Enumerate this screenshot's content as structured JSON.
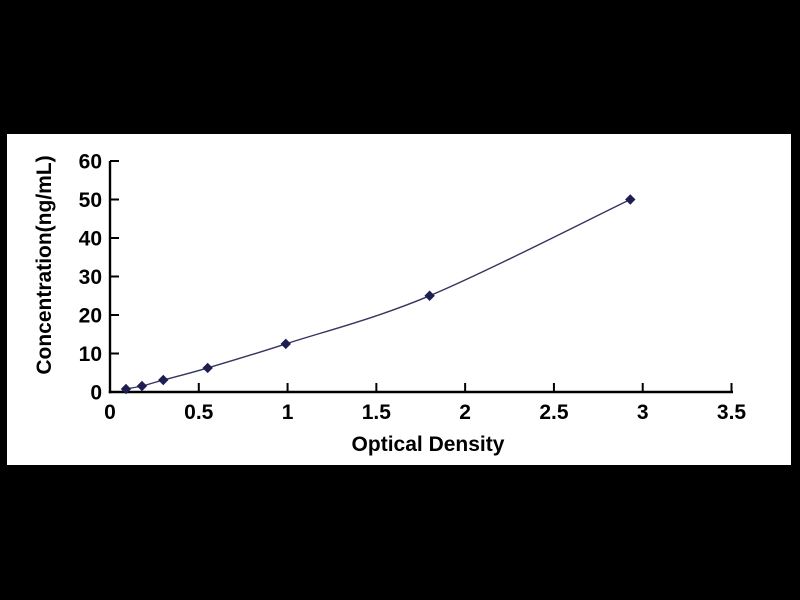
{
  "page": {
    "background_color": "#000000",
    "panel_background": "#ffffff",
    "panel_border_color": "#000000"
  },
  "chart_data": {
    "type": "scatter",
    "title": "",
    "xlabel": "Optical Density",
    "ylabel": "Concentration(ng/mL)",
    "x": [
      0.09,
      0.18,
      0.3,
      0.55,
      0.99,
      1.8,
      2.93
    ],
    "y": [
      0.78,
      1.56,
      3.12,
      6.25,
      12.5,
      25,
      50
    ],
    "xlim": [
      0,
      3.5
    ],
    "ylim": [
      0,
      60
    ],
    "x_ticks": [
      0,
      0.5,
      1,
      1.5,
      2,
      2.5,
      3,
      3.5
    ],
    "y_ticks": [
      0,
      10,
      20,
      30,
      40,
      50,
      60
    ],
    "grid": false,
    "legend": "none",
    "marker_shape": "diamond",
    "marker_color": "#1e1e52",
    "line_color": "#35355e",
    "axis_color": "#000000",
    "tick_style": "inside"
  }
}
